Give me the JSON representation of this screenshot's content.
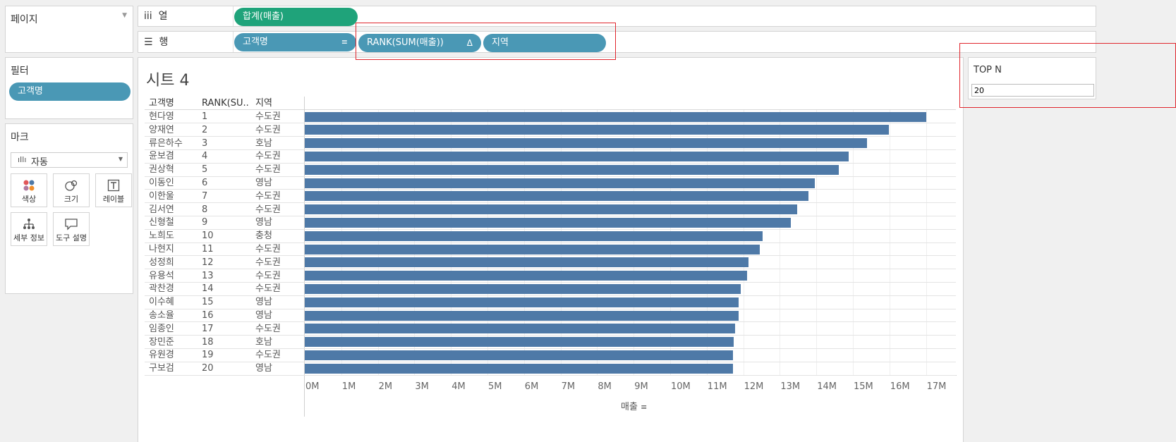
{
  "pages": {
    "title": "페이지"
  },
  "filters": {
    "title": "필터",
    "pills": [
      "고객명"
    ]
  },
  "marks": {
    "title": "마크",
    "type_label": "자동",
    "buttons": [
      {
        "label": "색상",
        "icon": "color-icon"
      },
      {
        "label": "크기",
        "icon": "size-icon"
      },
      {
        "label": "레이블",
        "icon": "label-icon"
      },
      {
        "label": "세부 정보",
        "icon": "detail-icon"
      },
      {
        "label": "도구 설명",
        "icon": "tooltip-icon"
      }
    ]
  },
  "shelves": {
    "columns": {
      "icon_text": "iii",
      "label": "열",
      "pill": "합계(매출)"
    },
    "rows": {
      "icon_text": "☰",
      "label": "행",
      "pills": [
        "고객명",
        "RANK(SUM(매출))",
        "지역"
      ],
      "sort_icon": "sort-icon",
      "delta_icon": "Δ"
    }
  },
  "sheet": {
    "title": "시트 4",
    "headers": {
      "name": "고객명",
      "rank": "RANK(SU..",
      "region": "지역"
    },
    "x_axis_label": "매출"
  },
  "parameter": {
    "title": "TOP N",
    "value": "20"
  },
  "chart_data": {
    "type": "bar",
    "orientation": "horizontal",
    "xlabel": "매출",
    "xlim": [
      0,
      18000000
    ],
    "x_ticks": [
      "0M",
      "1M",
      "2M",
      "3M",
      "4M",
      "5M",
      "6M",
      "7M",
      "8M",
      "9M",
      "10M",
      "11M",
      "12M",
      "13M",
      "14M",
      "15M",
      "16M",
      "17M"
    ],
    "categories": [
      "현다영",
      "양재연",
      "류은하수",
      "윤보겸",
      "권상혁",
      "이동인",
      "이한울",
      "김서연",
      "신형철",
      "노희도",
      "나현지",
      "성정희",
      "유용석",
      "곽찬경",
      "이수혜",
      "송소율",
      "임종인",
      "장민준",
      "유원경",
      "구보검"
    ],
    "ranks": [
      "1",
      "2",
      "3",
      "4",
      "5",
      "6",
      "7",
      "8",
      "9",
      "10",
      "11",
      "12",
      "13",
      "14",
      "15",
      "16",
      "17",
      "18",
      "19",
      "20"
    ],
    "regions": [
      "수도권",
      "수도권",
      "호남",
      "수도권",
      "수도권",
      "영남",
      "수도권",
      "수도권",
      "영남",
      "충청",
      "수도권",
      "수도권",
      "수도권",
      "수도권",
      "영남",
      "영남",
      "수도권",
      "호남",
      "수도권",
      "영남"
    ],
    "values": [
      17000000,
      15980000,
      15380000,
      14880000,
      14620000,
      13950000,
      13790000,
      13480000,
      13300000,
      12520000,
      12460000,
      12140000,
      12100000,
      11930000,
      11880000,
      11880000,
      11780000,
      11730000,
      11720000,
      11720000
    ]
  }
}
